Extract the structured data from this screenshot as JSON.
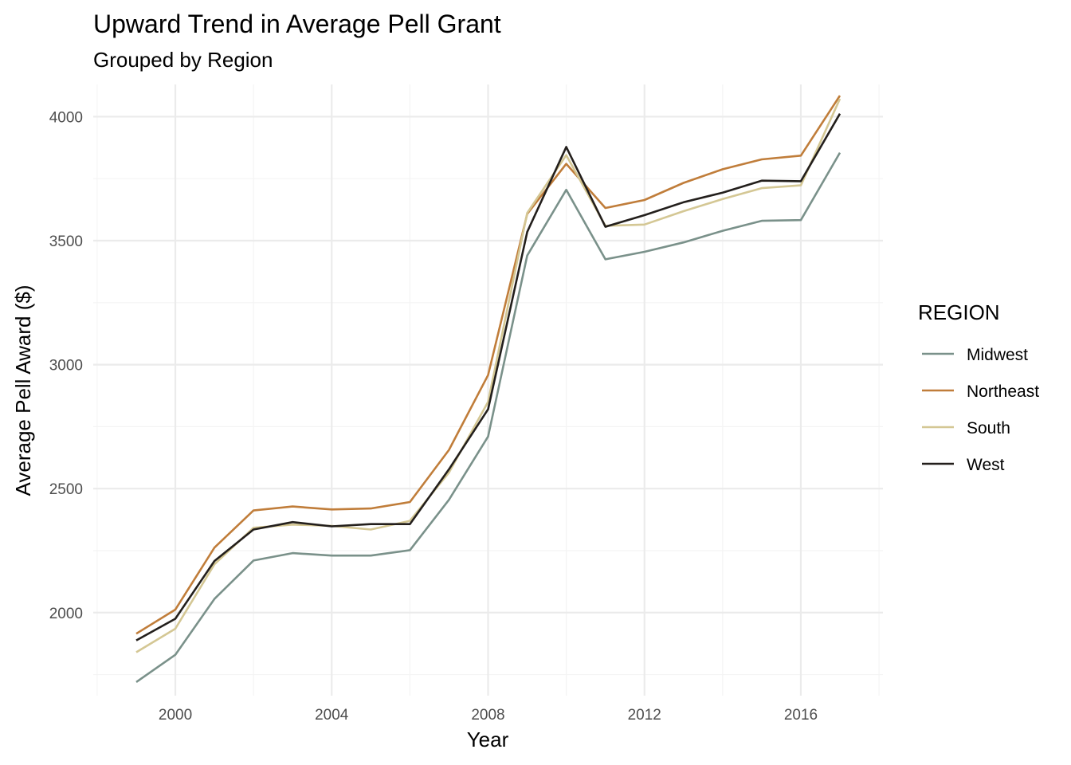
{
  "chart_data": {
    "type": "line",
    "title": "Upward Trend in Average Pell Grant",
    "subtitle": "Grouped by Region",
    "xlabel": "Year",
    "ylabel": "Average Pell Award ($)",
    "x": [
      1999,
      2000,
      2001,
      2002,
      2003,
      2004,
      2005,
      2006,
      2007,
      2008,
      2009,
      2010,
      2011,
      2012,
      2013,
      2014,
      2015,
      2016,
      2017
    ],
    "xlim": [
      1997.9,
      2018.1
    ],
    "ylim": [
      1665,
      4130
    ],
    "x_ticks": [
      2000,
      2004,
      2008,
      2012,
      2016
    ],
    "y_ticks": [
      2000,
      2500,
      3000,
      3500,
      4000
    ],
    "grid": true,
    "legend": {
      "title": "REGION",
      "position": "right"
    },
    "series": [
      {
        "name": "Midwest",
        "color": "#7a918a",
        "values": [
          1720,
          1830,
          2055,
          2210,
          2240,
          2230,
          2230,
          2252,
          2455,
          2710,
          3440,
          3705,
          3425,
          3455,
          3493,
          3540,
          3580,
          3583,
          3855
        ]
      },
      {
        "name": "Northeast",
        "color": "#c07d3a",
        "values": [
          1915,
          2012,
          2262,
          2412,
          2428,
          2416,
          2420,
          2446,
          2656,
          2958,
          3608,
          3810,
          3632,
          3664,
          3733,
          3788,
          3828,
          3843,
          4085
        ]
      },
      {
        "name": "South",
        "color": "#d4c794",
        "values": [
          1840,
          1935,
          2195,
          2342,
          2355,
          2350,
          2335,
          2370,
          2565,
          2850,
          3612,
          3845,
          3560,
          3565,
          3619,
          3668,
          3712,
          3723,
          4072
        ]
      },
      {
        "name": "West",
        "color": "#231f1c",
        "values": [
          1888,
          1975,
          2208,
          2335,
          2365,
          2348,
          2357,
          2357,
          2578,
          2820,
          3535,
          3878,
          3556,
          3603,
          3655,
          3694,
          3742,
          3740,
          4012
        ]
      }
    ]
  }
}
